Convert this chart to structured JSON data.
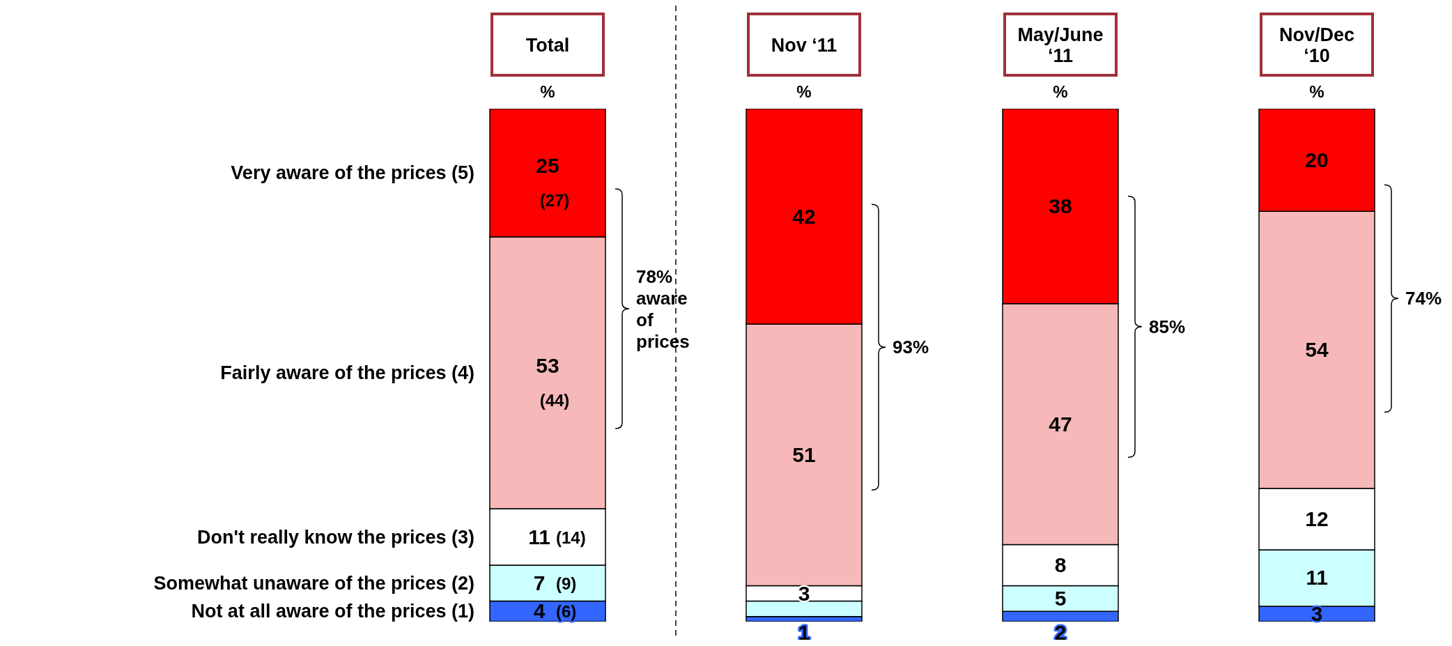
{
  "chart_data": {
    "type": "bar",
    "stacked": true,
    "ylabel": "%",
    "categories": [
      "Total",
      "Nov ‘11",
      "May/June ‘11",
      "Nov/Dec ‘10"
    ],
    "series": [
      {
        "name": "Not at all aware of the prices (1)",
        "color": "#3366ff",
        "values": [
          4,
          1,
          2,
          3
        ],
        "value_labels": [
          "4 (6)",
          "1",
          "2",
          "3"
        ]
      },
      {
        "name": "Somewhat unaware of the prices (2)",
        "color": "#ccffff",
        "values": [
          7,
          3,
          5,
          11
        ],
        "value_labels": [
          "7 (9)",
          null,
          "5",
          "11"
        ]
      },
      {
        "name": "Don't really know the prices (3)",
        "color": "#ffffff",
        "values": [
          11,
          3,
          8,
          12
        ],
        "value_labels": [
          "11 (14)",
          "3",
          "8",
          "12"
        ]
      },
      {
        "name": "Fairly aware of the prices (4)",
        "color": "#f6b8b8",
        "values": [
          53,
          51,
          47,
          54
        ],
        "value_labels": [
          "53 (44)",
          "51",
          "47",
          "54"
        ]
      },
      {
        "name": "Very aware of the prices (5)",
        "color": "#ff0000",
        "values": [
          25,
          42,
          38,
          20
        ],
        "value_labels": [
          "25 (27)",
          "42",
          "38",
          "20"
        ]
      }
    ],
    "annotations": [
      "78% aware of prices",
      "93%",
      "85%",
      "74%"
    ]
  }
}
